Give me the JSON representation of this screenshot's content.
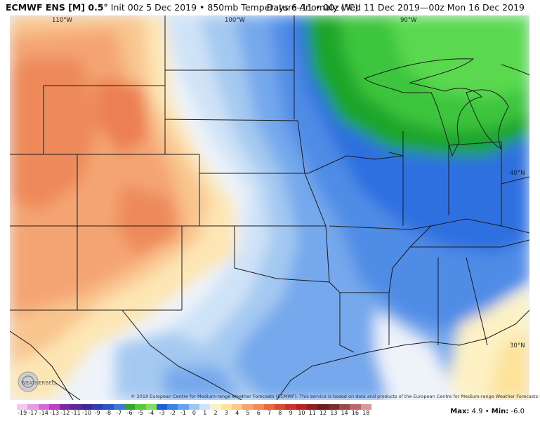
{
  "header": {
    "model": "ECMWF ENS [M] 0.5°",
    "run": "Init 00z 5 Dec 2019 • 850mb Temperature Anomaly (°C)",
    "valid": "Days 6–11 • 00z Wed 11 Dec 2019—00z Mon 16 Dec 2019"
  },
  "map": {
    "lon_labels": [
      "110°W",
      "100°W",
      "90°W"
    ],
    "lat_labels": [
      "40°N",
      "30°N"
    ],
    "copyright": "© 2019 European Centre for Medium-range Weather Forecasts (ECMWF). This service is based on data and products of the European Centre for Medium-range Weather Forecasts (ECMWF).",
    "logo_text": "WEATHERBELL"
  },
  "colorbar": {
    "labels": [
      "-19",
      "-17",
      "-14",
      "-13",
      "-12",
      "-11",
      "-10",
      "-9",
      "-8",
      "-7",
      "-6",
      "-5",
      "-4",
      "-3",
      "-2",
      "-1",
      "0",
      "1",
      "2",
      "3",
      "4",
      "5",
      "6",
      "7",
      "8",
      "9",
      "10",
      "11",
      "12",
      "13",
      "14",
      "16",
      "18"
    ],
    "colors": [
      "#f5c6ef",
      "#e89be2",
      "#d66ad6",
      "#b840c4",
      "#7d2a9e",
      "#5b2799",
      "#3b2a8f",
      "#2d3fae",
      "#2b56c8",
      "#3f78d8",
      "#35a52a",
      "#55c93c",
      "#7fde5a",
      "#1d5fd6",
      "#3b82e6",
      "#66a3ee",
      "#9dc6f3",
      "#cfe2f7",
      "#fdf1c4",
      "#fde29a",
      "#fbc98a",
      "#f6a36e",
      "#f08a58",
      "#e86a42",
      "#d94a35",
      "#c93329",
      "#b32322",
      "#8f1f1f",
      "#6e1c1c",
      "#7a2b2b",
      "#9a4a4a",
      "#b86a6a",
      "#d89a9a"
    ]
  },
  "stats": {
    "max_label": "Max:",
    "max": "4.9",
    "sep": "•",
    "min_label": "Min:",
    "min": "-6.0"
  }
}
